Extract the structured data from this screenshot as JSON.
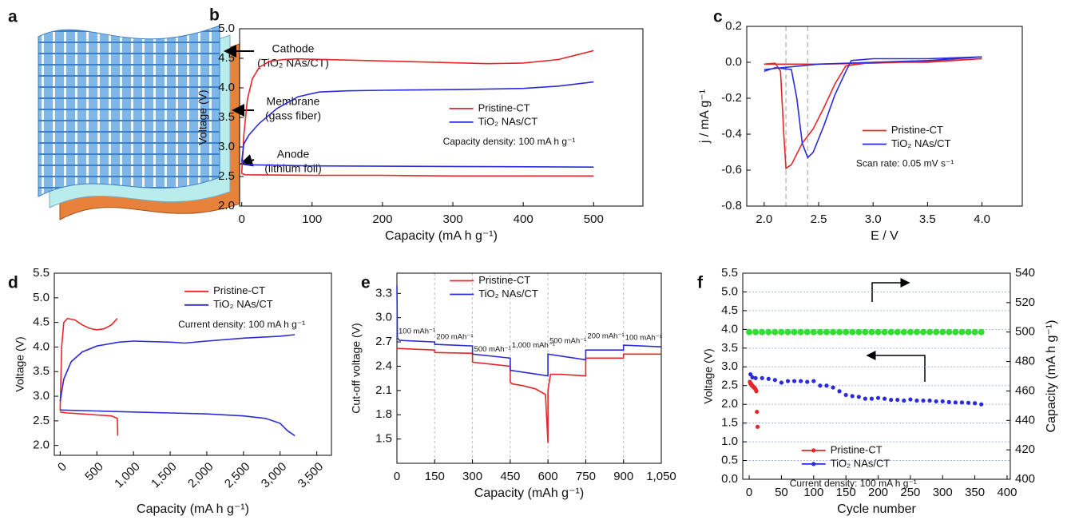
{
  "diagram": {
    "label": "a",
    "layers": [
      {
        "name": "Cathode",
        "detail": "(TiO₂ NAs/CT)"
      },
      {
        "name": "Membrane",
        "detail": "(gass fiber)"
      },
      {
        "name": "Anode",
        "detail": "(lithium foil)"
      }
    ]
  },
  "chart_data": [
    {
      "label": "b",
      "type": "line",
      "xlabel": "Capacity (mA h g⁻¹)",
      "ylabel": "Voltage (V)",
      "xlim": [
        -3,
        570
      ],
      "ylim": [
        2.0,
        5.0
      ],
      "xticks": [
        0,
        100,
        200,
        300,
        400,
        500
      ],
      "yticks": [
        {
          "value": 2,
          "label": "2.0"
        },
        2.5,
        {
          "value": 3,
          "label": "3.0"
        },
        3.5,
        {
          "value": 4,
          "label": "4.0"
        },
        4.5,
        {
          "value": 5,
          "label": "5.0"
        }
      ],
      "legend": "center",
      "annotation": "Capacity density:  100 mA h g⁻¹",
      "series": [
        {
          "name": "Pristine-CT",
          "color": "#e8262a",
          "curves": [
            {
              "x": [
                0,
                3,
                8,
                15,
                25,
                40,
                60,
                80,
                150,
                250,
                350,
                400,
                450,
                480,
                500
              ],
              "values": [
                2.55,
                3.2,
                3.8,
                4.15,
                4.35,
                4.45,
                4.48,
                4.49,
                4.47,
                4.44,
                4.41,
                4.42,
                4.48,
                4.57,
                4.63
              ]
            },
            {
              "x": [
                0,
                5,
                100,
                200,
                300,
                400,
                500
              ],
              "values": [
                2.55,
                2.53,
                2.52,
                2.52,
                2.51,
                2.51,
                2.51
              ]
            }
          ]
        },
        {
          "name": "TiO₂ NAs/CT",
          "color": "#2b2bdb",
          "curves": [
            {
              "x": [
                0,
                3,
                10,
                25,
                50,
                80,
                110,
                150,
                200,
                300,
                400,
                450,
                500
              ],
              "values": [
                2.75,
                3.05,
                3.2,
                3.4,
                3.65,
                3.85,
                3.93,
                3.95,
                3.96,
                3.97,
                3.99,
                4.03,
                4.1
              ]
            },
            {
              "x": [
                0,
                5,
                100,
                300,
                500
              ],
              "values": [
                2.8,
                2.7,
                2.68,
                2.67,
                2.66
              ]
            }
          ]
        }
      ]
    },
    {
      "label": "c",
      "type": "line",
      "xlabel": "E / V",
      "ylabel": "j / mA g⁻¹",
      "xlim": [
        1.84,
        4.37
      ],
      "ylim": [
        -0.8,
        0.2
      ],
      "xticks": [
        {
          "value": 2,
          "label": "2.0"
        },
        2.5,
        {
          "value": 3,
          "label": "3.0"
        },
        3.5,
        {
          "value": 4,
          "label": "4.0"
        }
      ],
      "yticks": [
        -0.8,
        -0.6,
        -0.4,
        -0.2,
        {
          "value": 0,
          "label": "0.0"
        },
        0.2
      ],
      "vlines": [
        2.2,
        2.4
      ],
      "legend": "lower right",
      "annotation": "Scan rate:  0.05 mV s⁻¹",
      "series": [
        {
          "name": "Pristine-CT",
          "color": "#e8262a",
          "curves": [
            {
              "x": [
                2.0,
                2.1,
                2.15,
                2.18,
                2.2,
                2.25,
                2.35,
                2.45,
                2.55,
                2.65,
                2.75,
                3.0,
                3.5,
                4.0,
                3.5,
                3.0,
                2.5,
                2.0
              ],
              "values": [
                -0.01,
                -0.005,
                -0.05,
                -0.4,
                -0.59,
                -0.57,
                -0.45,
                -0.37,
                -0.25,
                -0.12,
                -0.02,
                0.0,
                0.0,
                0.02,
                0.005,
                -0.005,
                -0.01,
                -0.01
              ]
            }
          ]
        },
        {
          "name": "TiO₂ NAs/CT",
          "color": "#2b2bdb",
          "curves": [
            {
              "x": [
                2.0,
                2.1,
                2.25,
                2.3,
                2.35,
                2.4,
                2.45,
                2.55,
                2.65,
                2.75,
                2.8,
                3.0,
                3.5,
                4.0,
                3.5,
                3.0,
                2.5,
                2.0
              ],
              "values": [
                -0.05,
                -0.03,
                -0.04,
                -0.2,
                -0.45,
                -0.53,
                -0.5,
                -0.35,
                -0.18,
                -0.05,
                0.01,
                0.02,
                0.02,
                0.03,
                0.01,
                0.0,
                -0.01,
                -0.04
              ]
            }
          ]
        }
      ]
    },
    {
      "label": "d",
      "type": "line",
      "xlabel": "Capacity (mA h g⁻¹)",
      "ylabel": "Voltage (V)",
      "xlim": [
        -80,
        3700
      ],
      "ylim": [
        1.8,
        5.5
      ],
      "xticks": [
        0,
        500,
        {
          "value": 1000,
          "label": "1,000"
        },
        {
          "value": 1500,
          "label": "1,500"
        },
        {
          "value": 2000,
          "label": "2,000"
        },
        {
          "value": 2500,
          "label": "2,500"
        },
        {
          "value": 3000,
          "label": "3,000"
        },
        {
          "value": 3500,
          "label": "3,500"
        }
      ],
      "yticks": [
        {
          "value": 2,
          "label": "2.0"
        },
        2.5,
        {
          "value": 3,
          "label": "3.0"
        },
        3.5,
        {
          "value": 4,
          "label": "4.0"
        },
        4.5,
        {
          "value": 5,
          "label": "5.0"
        },
        5.5
      ],
      "legend": "upper right",
      "annotation": "Current density: 100 mA h g⁻¹",
      "series": [
        {
          "name": "Pristine-CT",
          "color": "#e8262a",
          "curves": [
            {
              "x": [
                0,
                20,
                50,
                100,
                200,
                300,
                400,
                500,
                600,
                700,
                780
              ],
              "values": [
                2.7,
                4.0,
                4.5,
                4.58,
                4.55,
                4.45,
                4.38,
                4.35,
                4.37,
                4.45,
                4.58
              ]
            },
            {
              "x": [
                0,
                100,
                300,
                500,
                700,
                780,
                785
              ],
              "values": [
                2.68,
                2.66,
                2.64,
                2.62,
                2.6,
                2.55,
                2.2
              ]
            }
          ]
        },
        {
          "name": "TiO₂ NAs/CT",
          "color": "#2b2bdb",
          "curves": [
            {
              "x": [
                0,
                50,
                150,
                300,
                500,
                800,
                1000,
                1500,
                1700,
                2000,
                2500,
                3000,
                3200
              ],
              "values": [
                2.9,
                3.35,
                3.7,
                3.9,
                4.02,
                4.1,
                4.12,
                4.1,
                4.08,
                4.12,
                4.18,
                4.22,
                4.25
              ]
            },
            {
              "x": [
                0,
                500,
                1000,
                1500,
                2000,
                2500,
                2800,
                3000,
                3100,
                3200
              ],
              "values": [
                2.72,
                2.7,
                2.68,
                2.66,
                2.64,
                2.6,
                2.55,
                2.45,
                2.3,
                2.2
              ]
            }
          ]
        }
      ]
    },
    {
      "label": "e",
      "type": "line",
      "xlabel": "Capacity (mAh g⁻¹)",
      "ylabel": "Cut-off voltage (V)",
      "xlim": [
        0,
        1050
      ],
      "ylim": [
        1.2,
        3.55
      ],
      "xticks": [
        0,
        150,
        300,
        450,
        600,
        750,
        900,
        {
          "value": 1050,
          "label": "1,050"
        }
      ],
      "yticks": [
        1.5,
        1.8,
        2.1,
        2.4,
        2.7,
        {
          "value": 3,
          "label": "3.0"
        },
        3.3
      ],
      "grid": "x",
      "legend": "upper center",
      "rate_labels": [
        "100 mAh⁻¹",
        "200 mAh⁻¹",
        "500 mAh⁻¹",
        "1,000 mAh⁻¹",
        "500 mAh⁻¹",
        "200 mAh⁻¹",
        "100 mAh⁻¹"
      ],
      "series": [
        {
          "name": "Pristine-CT",
          "color": "#e8262a",
          "curves": [
            {
              "x": [
                0,
                2,
                150,
                150,
                300,
                300,
                450,
                450,
                460,
                500,
                550,
                590,
                600,
                600,
                610,
                650,
                750,
                750,
                900,
                900,
                1050
              ],
              "values": [
                2.62,
                2.62,
                2.6,
                2.57,
                2.56,
                2.45,
                2.4,
                2.2,
                2.18,
                2.16,
                2.12,
                2.05,
                1.45,
                2.1,
                2.3,
                2.3,
                2.28,
                2.5,
                2.5,
                2.55,
                2.55
              ]
            }
          ]
        },
        {
          "name": "TiO₂ NAs/CT",
          "color": "#2b2bdb",
          "curves": [
            {
              "x": [
                0,
                2,
                10,
                150,
                150,
                300,
                300,
                450,
                450,
                600,
                600,
                750,
                750,
                900,
                900,
                1050
              ],
              "values": [
                3.4,
                2.75,
                2.72,
                2.7,
                2.67,
                2.65,
                2.55,
                2.5,
                2.35,
                2.28,
                2.55,
                2.48,
                2.6,
                2.6,
                2.66,
                2.64
              ]
            }
          ]
        }
      ]
    },
    {
      "label": "f",
      "type": "scatter",
      "xlabel": "Cycle number",
      "ylabel": "Voltage (V)",
      "y2label": "Capacity (mA h g⁻¹)",
      "xlim": [
        -10,
        405
      ],
      "ylim": [
        0,
        5.5
      ],
      "y2lim": [
        400,
        540
      ],
      "xticks": [
        0,
        50,
        100,
        150,
        200,
        250,
        300,
        350,
        400
      ],
      "yticks": [
        {
          "value": 0,
          "label": "0.0"
        },
        0.5,
        {
          "value": 1,
          "label": "1.0"
        },
        1.5,
        {
          "value": 2,
          "label": "2.0"
        },
        2.5,
        {
          "value": 3,
          "label": "3.0"
        },
        3.5,
        {
          "value": 4,
          "label": "4.0"
        },
        4.5,
        {
          "value": 5,
          "label": "5.0"
        },
        5.5
      ],
      "y2ticks": [
        400,
        420,
        440,
        460,
        480,
        500,
        520,
        540
      ],
      "grid": "y",
      "legend": "lower left",
      "annotation": "Current density: 100 mA h g⁻¹",
      "series": [
        {
          "name": "Pristine-CT",
          "color": "#e8262a",
          "x": [
            1,
            2,
            3,
            4,
            5,
            6,
            7,
            8,
            9,
            10,
            11,
            12,
            13
          ],
          "values": [
            2.6,
            2.55,
            2.55,
            2.5,
            2.5,
            2.48,
            2.45,
            2.45,
            2.42,
            2.4,
            2.35,
            1.8,
            1.4
          ]
        },
        {
          "name": "TiO₂ NAs/CT",
          "color": "#2b2bdb",
          "x": [
            2,
            5,
            10,
            20,
            30,
            40,
            50,
            60,
            70,
            80,
            90,
            100,
            110,
            120,
            130,
            140,
            150,
            160,
            170,
            180,
            190,
            200,
            210,
            220,
            230,
            240,
            250,
            260,
            270,
            280,
            290,
            300,
            310,
            320,
            330,
            340,
            350,
            360
          ],
          "values": [
            2.8,
            2.72,
            2.7,
            2.7,
            2.68,
            2.65,
            2.58,
            2.62,
            2.62,
            2.62,
            2.6,
            2.62,
            2.5,
            2.5,
            2.45,
            2.35,
            2.25,
            2.22,
            2.2,
            2.15,
            2.15,
            2.17,
            2.15,
            2.12,
            2.12,
            2.1,
            2.13,
            2.1,
            2.1,
            2.1,
            2.08,
            2.08,
            2.06,
            2.05,
            2.05,
            2.04,
            2.03,
            2.0
          ]
        },
        {
          "color": "#33dd33",
          "axis": "y2",
          "x": [
            0,
            10,
            20,
            30,
            40,
            50,
            60,
            70,
            80,
            90,
            100,
            110,
            120,
            130,
            140,
            150,
            160,
            170,
            180,
            190,
            200,
            210,
            220,
            230,
            240,
            250,
            260,
            270,
            280,
            290,
            300,
            310,
            320,
            330,
            340,
            350,
            360
          ],
          "values": [
            500,
            500,
            500,
            500,
            500,
            500,
            500,
            500,
            500,
            500,
            500,
            500,
            500,
            500,
            500,
            500,
            500,
            500,
            500,
            500,
            500,
            500,
            500,
            500,
            500,
            500,
            500,
            500,
            500,
            500,
            500,
            500,
            500,
            500,
            500,
            500,
            500
          ]
        }
      ]
    }
  ]
}
